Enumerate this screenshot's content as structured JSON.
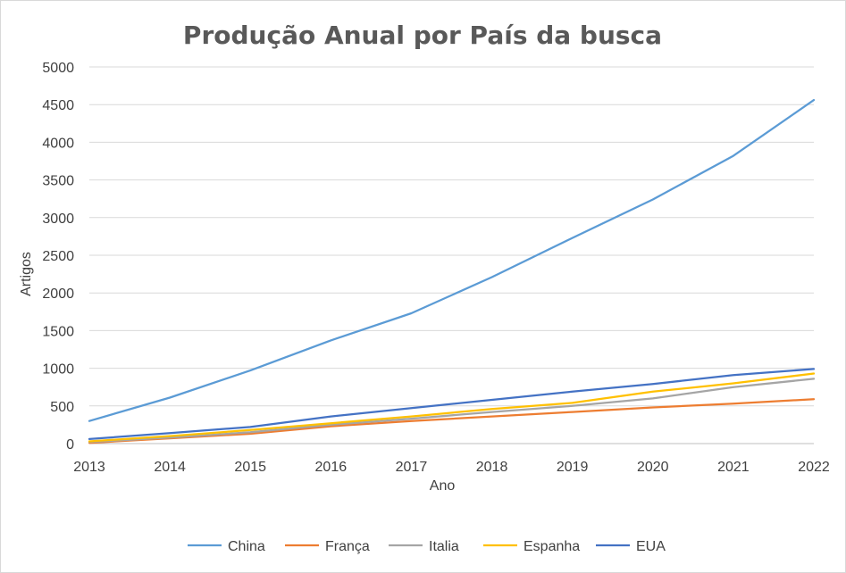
{
  "chart_data": {
    "type": "line",
    "title": "Produção Anual por País da busca",
    "xlabel": "Ano",
    "ylabel": "Artigos",
    "ylim": [
      0,
      5000
    ],
    "yticks": [
      0,
      500,
      1000,
      1500,
      2000,
      2500,
      3000,
      3500,
      4000,
      4500,
      5000
    ],
    "grid": true,
    "legend_position": "bottom",
    "x": [
      "2013",
      "2014",
      "2015",
      "2016",
      "2017",
      "2018",
      "2019",
      "2020",
      "2021",
      "2022"
    ],
    "series": [
      {
        "name": "China",
        "color": "#5b9bd5",
        "values": [
          300,
          610,
          970,
          1370,
          1730,
          2210,
          2730,
          3240,
          3820,
          4560
        ]
      },
      {
        "name": "França",
        "color": "#ed7d31",
        "values": [
          10,
          70,
          130,
          230,
          300,
          360,
          420,
          480,
          530,
          590
        ]
      },
      {
        "name": "Italia",
        "color": "#a5a5a5",
        "values": [
          20,
          80,
          150,
          250,
          330,
          420,
          500,
          600,
          750,
          860
        ]
      },
      {
        "name": "Espanha",
        "color": "#ffc000",
        "values": [
          30,
          100,
          180,
          270,
          360,
          460,
          540,
          690,
          800,
          930
        ]
      },
      {
        "name": "EUA",
        "color": "#4472c4",
        "values": [
          60,
          140,
          220,
          360,
          470,
          580,
          690,
          790,
          910,
          990
        ]
      }
    ]
  }
}
